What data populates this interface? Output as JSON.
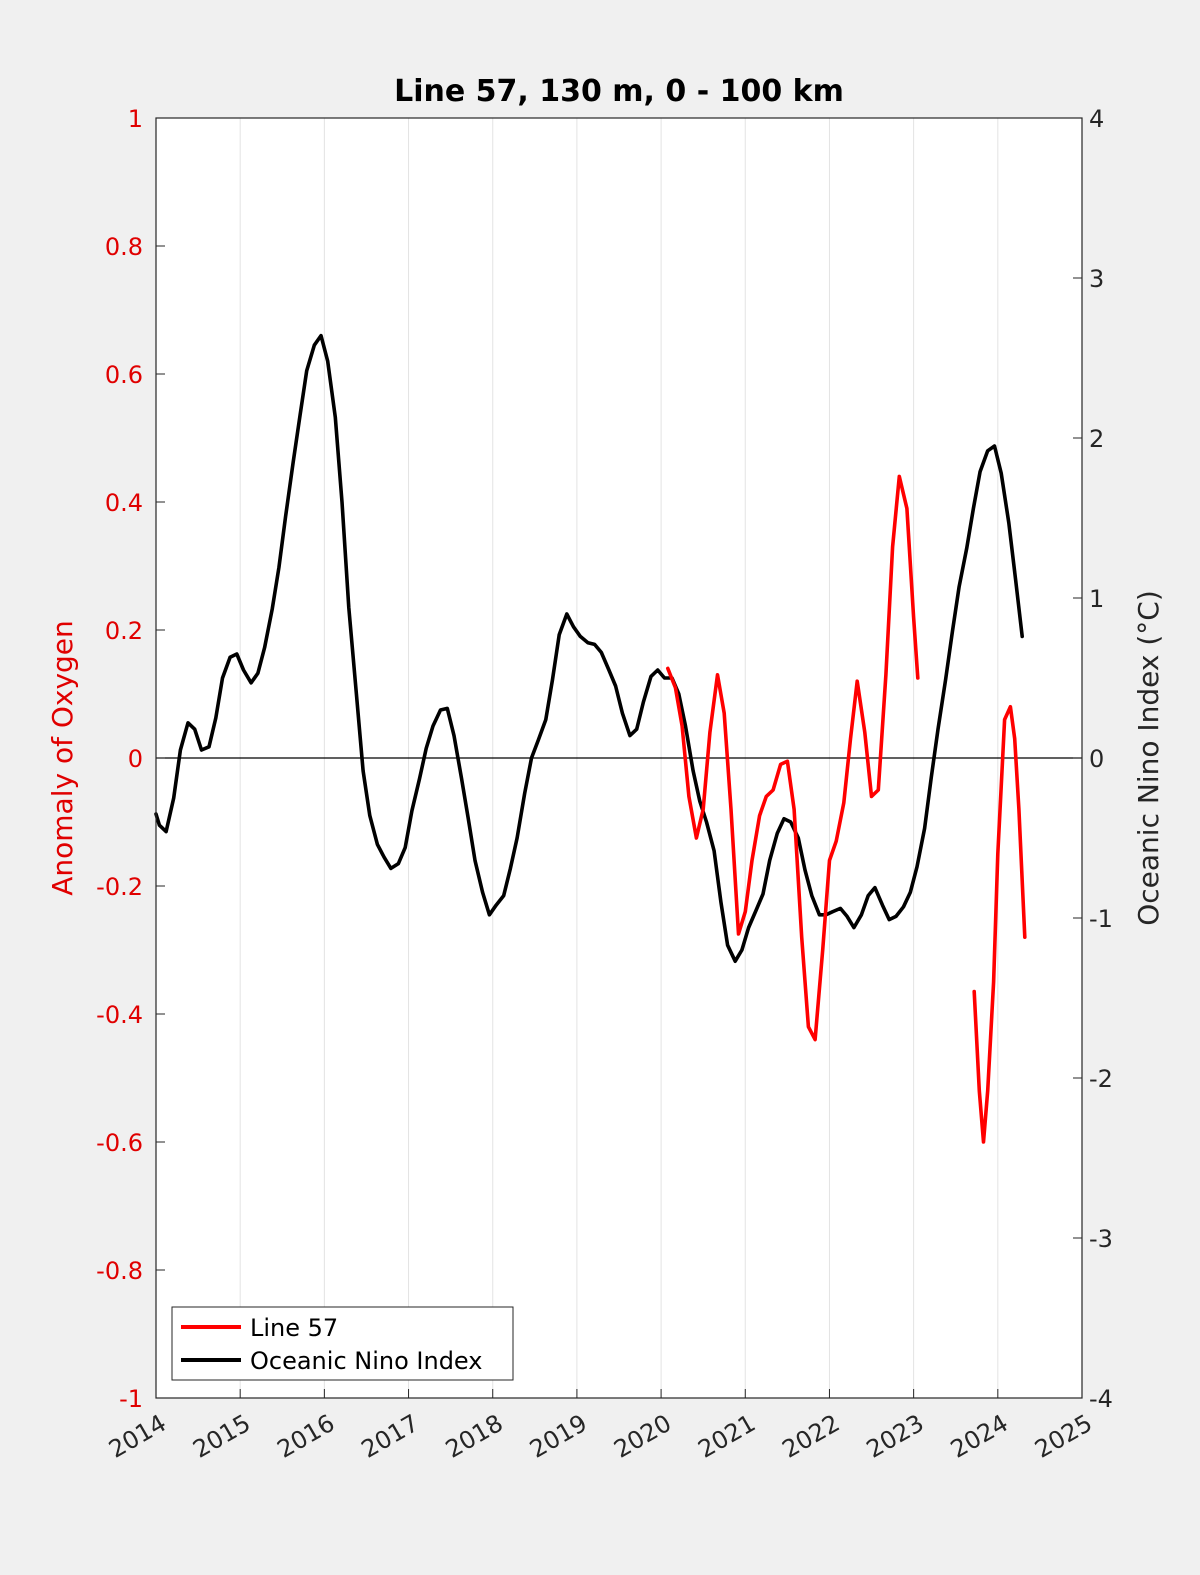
{
  "chart_data": {
    "type": "line",
    "title": "Line 57, 130 m, 0 - 100 km",
    "xlabel": "",
    "ylabel_left": "Anomaly of Oxygen",
    "ylabel_right": "Oceanic Nino Index (°C)",
    "xlim": [
      2014,
      2025
    ],
    "ylim_left": [
      -1,
      1
    ],
    "ylim_right": [
      -4,
      4
    ],
    "x_ticks": [
      "2014",
      "2015",
      "2016",
      "2017",
      "2018",
      "2019",
      "2020",
      "2021",
      "2022",
      "2023",
      "2024",
      "2025"
    ],
    "y_ticks_left": [
      "1",
      "0.8",
      "0.6",
      "0.4",
      "0.2",
      "0",
      "-0.2",
      "-0.4",
      "-0.6",
      "-0.8",
      "-1"
    ],
    "y_ticks_right": [
      "4",
      "3",
      "2",
      "1",
      "0",
      "-1",
      "-2",
      "-3",
      "-4"
    ],
    "grid": "vertical",
    "legend_position": "bottom-left",
    "colors": {
      "line57": "#ff0000",
      "oni": "#000000",
      "left_axis": "#e00000"
    },
    "series": [
      {
        "name": "Line 57",
        "axis": "left",
        "segments": [
          [
            [
              2020.08,
              0.14
            ],
            [
              2020.17,
              0.11
            ],
            [
              2020.25,
              0.05
            ],
            [
              2020.33,
              -0.06
            ],
            [
              2020.42,
              -0.125
            ],
            [
              2020.5,
              -0.08
            ],
            [
              2020.58,
              0.04
            ],
            [
              2020.67,
              0.13
            ],
            [
              2020.75,
              0.07
            ],
            [
              2020.83,
              -0.08
            ],
            [
              2020.92,
              -0.275
            ],
            [
              2021.0,
              -0.24
            ],
            [
              2021.08,
              -0.16
            ],
            [
              2021.17,
              -0.09
            ],
            [
              2021.25,
              -0.06
            ],
            [
              2021.33,
              -0.05
            ],
            [
              2021.42,
              -0.01
            ],
            [
              2021.5,
              -0.005
            ],
            [
              2021.58,
              -0.08
            ],
            [
              2021.67,
              -0.28
            ],
            [
              2021.75,
              -0.42
            ],
            [
              2021.83,
              -0.44
            ],
            [
              2021.92,
              -0.3
            ],
            [
              2022.0,
              -0.16
            ],
            [
              2022.08,
              -0.13
            ],
            [
              2022.17,
              -0.07
            ],
            [
              2022.25,
              0.03
            ],
            [
              2022.33,
              0.12
            ],
            [
              2022.42,
              0.04
            ],
            [
              2022.5,
              -0.06
            ],
            [
              2022.58,
              -0.05
            ],
            [
              2022.67,
              0.13
            ],
            [
              2022.75,
              0.33
            ],
            [
              2022.83,
              0.44
            ],
            [
              2022.92,
              0.39
            ],
            [
              2023.0,
              0.22
            ],
            [
              2023.05,
              0.125
            ]
          ],
          [
            [
              2023.72,
              -0.365
            ],
            [
              2023.78,
              -0.52
            ],
            [
              2023.83,
              -0.6
            ],
            [
              2023.88,
              -0.52
            ],
            [
              2023.95,
              -0.35
            ],
            [
              2024.0,
              -0.15
            ],
            [
              2024.08,
              0.06
            ],
            [
              2024.15,
              0.08
            ],
            [
              2024.2,
              0.03
            ],
            [
              2024.25,
              -0.08
            ],
            [
              2024.32,
              -0.28
            ]
          ]
        ]
      },
      {
        "name": "Oceanic Nino Index",
        "axis": "right",
        "segments": [
          [
            [
              2014.0,
              -0.35
            ],
            [
              2014.04,
              -0.42
            ],
            [
              2014.12,
              -0.46
            ],
            [
              2014.21,
              -0.25
            ],
            [
              2014.29,
              0.05
            ],
            [
              2014.38,
              0.22
            ],
            [
              2014.46,
              0.18
            ],
            [
              2014.54,
              0.05
            ],
            [
              2014.63,
              0.07
            ],
            [
              2014.71,
              0.25
            ],
            [
              2014.79,
              0.5
            ],
            [
              2014.88,
              0.63
            ],
            [
              2014.96,
              0.65
            ],
            [
              2015.04,
              0.55
            ],
            [
              2015.13,
              0.47
            ],
            [
              2015.21,
              0.53
            ],
            [
              2015.29,
              0.69
            ],
            [
              2015.38,
              0.93
            ],
            [
              2015.46,
              1.19
            ],
            [
              2015.54,
              1.51
            ],
            [
              2015.63,
              1.85
            ],
            [
              2015.71,
              2.14
            ],
            [
              2015.79,
              2.42
            ],
            [
              2015.88,
              2.58
            ],
            [
              2015.96,
              2.64
            ],
            [
              2016.04,
              2.48
            ],
            [
              2016.13,
              2.13
            ],
            [
              2016.21,
              1.6
            ],
            [
              2016.29,
              0.94
            ],
            [
              2016.38,
              0.4
            ],
            [
              2016.46,
              -0.08
            ],
            [
              2016.54,
              -0.36
            ],
            [
              2016.63,
              -0.54
            ],
            [
              2016.71,
              -0.62
            ],
            [
              2016.79,
              -0.69
            ],
            [
              2016.88,
              -0.66
            ],
            [
              2016.96,
              -0.56
            ],
            [
              2017.04,
              -0.33
            ],
            [
              2017.13,
              -0.13
            ],
            [
              2017.21,
              0.06
            ],
            [
              2017.29,
              0.2
            ],
            [
              2017.38,
              0.3
            ],
            [
              2017.46,
              0.31
            ],
            [
              2017.54,
              0.14
            ],
            [
              2017.63,
              -0.13
            ],
            [
              2017.71,
              -0.38
            ],
            [
              2017.79,
              -0.64
            ],
            [
              2017.88,
              -0.84
            ],
            [
              2017.96,
              -0.98
            ],
            [
              2018.04,
              -0.92
            ],
            [
              2018.13,
              -0.86
            ],
            [
              2018.21,
              -0.69
            ],
            [
              2018.29,
              -0.5
            ],
            [
              2018.38,
              -0.22
            ],
            [
              2018.46,
              0.0
            ],
            [
              2018.54,
              0.11
            ],
            [
              2018.63,
              0.24
            ],
            [
              2018.71,
              0.49
            ],
            [
              2018.79,
              0.77
            ],
            [
              2018.88,
              0.9
            ],
            [
              2018.96,
              0.82
            ],
            [
              2019.04,
              0.76
            ],
            [
              2019.13,
              0.72
            ],
            [
              2019.21,
              0.71
            ],
            [
              2019.29,
              0.66
            ],
            [
              2019.38,
              0.55
            ],
            [
              2019.46,
              0.45
            ],
            [
              2019.54,
              0.28
            ],
            [
              2019.63,
              0.14
            ],
            [
              2019.71,
              0.18
            ],
            [
              2019.79,
              0.35
            ],
            [
              2019.88,
              0.51
            ],
            [
              2019.96,
              0.55
            ],
            [
              2020.04,
              0.5
            ],
            [
              2020.13,
              0.5
            ],
            [
              2020.21,
              0.4
            ],
            [
              2020.29,
              0.2
            ],
            [
              2020.38,
              -0.08
            ],
            [
              2020.46,
              -0.27
            ],
            [
              2020.54,
              -0.4
            ],
            [
              2020.63,
              -0.58
            ],
            [
              2020.71,
              -0.9
            ],
            [
              2020.79,
              -1.17
            ],
            [
              2020.88,
              -1.27
            ],
            [
              2020.96,
              -1.2
            ],
            [
              2021.04,
              -1.06
            ],
            [
              2021.13,
              -0.95
            ],
            [
              2021.21,
              -0.85
            ],
            [
              2021.29,
              -0.64
            ],
            [
              2021.38,
              -0.47
            ],
            [
              2021.46,
              -0.38
            ],
            [
              2021.54,
              -0.4
            ],
            [
              2021.63,
              -0.5
            ],
            [
              2021.71,
              -0.7
            ],
            [
              2021.79,
              -0.86
            ],
            [
              2021.88,
              -0.98
            ],
            [
              2021.96,
              -0.98
            ],
            [
              2022.04,
              -0.96
            ],
            [
              2022.13,
              -0.94
            ],
            [
              2022.21,
              -0.99
            ],
            [
              2022.29,
              -1.06
            ],
            [
              2022.38,
              -0.98
            ],
            [
              2022.46,
              -0.86
            ],
            [
              2022.54,
              -0.81
            ],
            [
              2022.63,
              -0.92
            ],
            [
              2022.71,
              -1.01
            ],
            [
              2022.79,
              -0.99
            ],
            [
              2022.88,
              -0.93
            ],
            [
              2022.96,
              -0.84
            ],
            [
              2023.04,
              -0.68
            ],
            [
              2023.13,
              -0.44
            ],
            [
              2023.21,
              -0.12
            ],
            [
              2023.29,
              0.18
            ],
            [
              2023.38,
              0.49
            ],
            [
              2023.46,
              0.79
            ],
            [
              2023.54,
              1.07
            ],
            [
              2023.63,
              1.31
            ],
            [
              2023.71,
              1.56
            ],
            [
              2023.79,
              1.79
            ],
            [
              2023.88,
              1.92
            ],
            [
              2023.96,
              1.95
            ],
            [
              2024.04,
              1.78
            ],
            [
              2024.13,
              1.47
            ],
            [
              2024.21,
              1.12
            ],
            [
              2024.29,
              0.76
            ]
          ]
        ]
      }
    ]
  }
}
